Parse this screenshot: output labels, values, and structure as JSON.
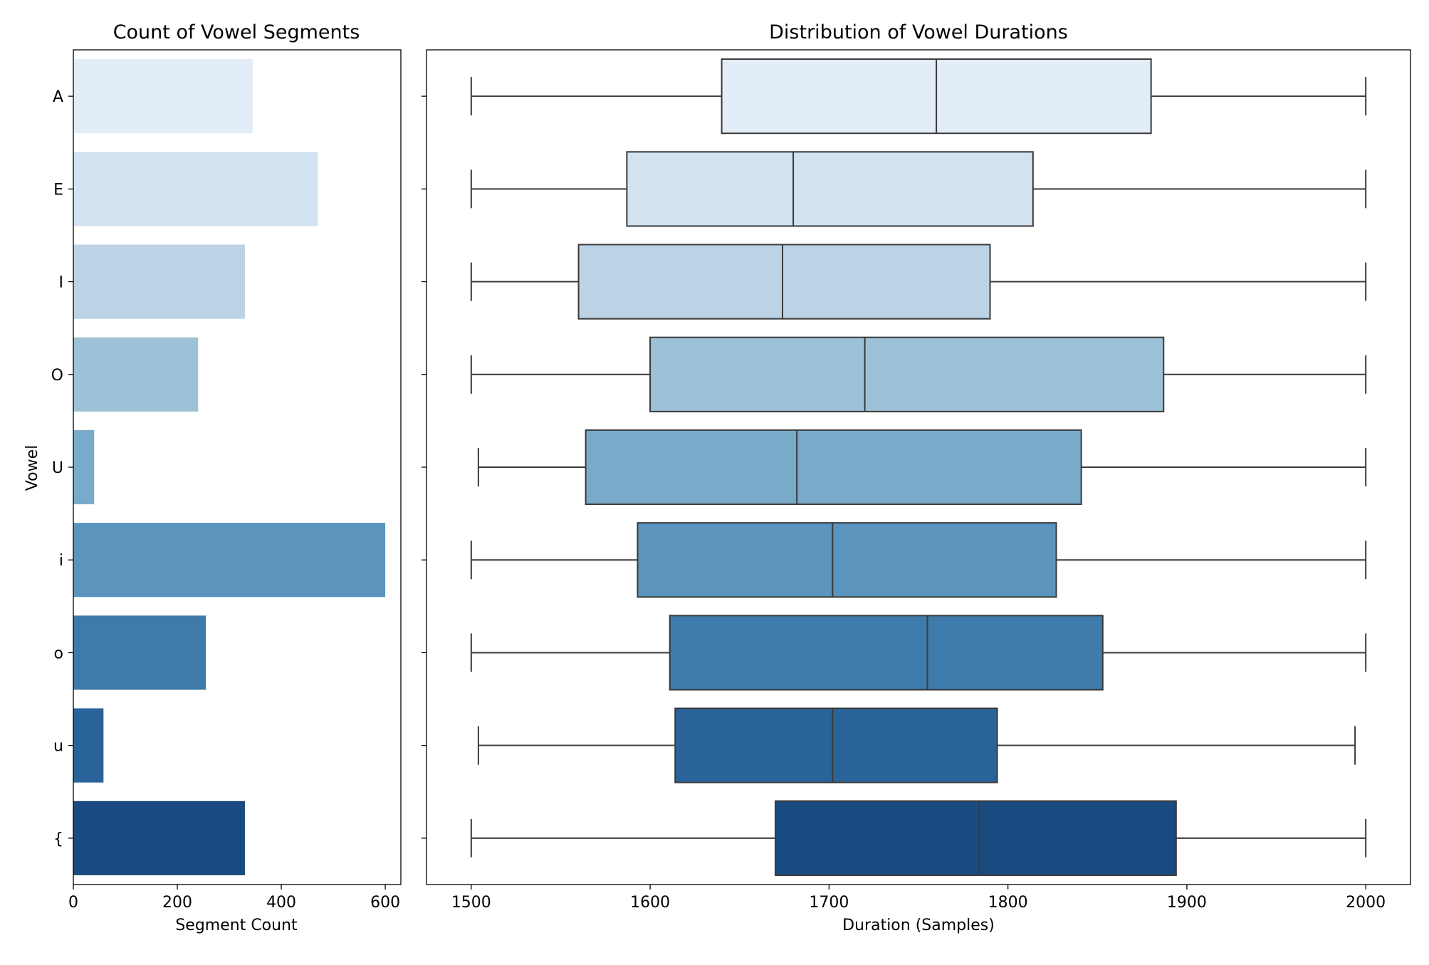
{
  "chart_data": [
    {
      "type": "bar",
      "orientation": "horizontal",
      "title": "Count of Vowel Segments",
      "xlabel": "Segment Count",
      "ylabel": "Vowel",
      "categories": [
        "A",
        "E",
        "I",
        "O",
        "U",
        "i",
        "o",
        "u",
        "{"
      ],
      "values": [
        345,
        470,
        330,
        240,
        40,
        600,
        255,
        58,
        330
      ],
      "xlim": [
        0,
        630
      ],
      "xticks": [
        "0",
        "200",
        "400",
        "600"
      ],
      "colors": [
        "#e3edf7",
        "#d2e2f1",
        "#bcd2e5",
        "#9dc2d7",
        "#79aaca",
        "#5b95bd",
        "#3e7aaa",
        "#296399",
        "#1a4b80"
      ],
      "grid": false,
      "legend": "none"
    },
    {
      "type": "box",
      "orientation": "horizontal",
      "title": "Distribution of Vowel Durations",
      "xlabel": "Duration (Samples)",
      "ylabel": "",
      "categories": [
        "A",
        "E",
        "I",
        "O",
        "U",
        "i",
        "o",
        "u",
        "{"
      ],
      "series": [
        {
          "category": "A",
          "min": 1500,
          "q1": 1640,
          "median": 1760,
          "q3": 1880,
          "max": 2000
        },
        {
          "category": "E",
          "min": 1500,
          "q1": 1587,
          "median": 1680,
          "q3": 1814,
          "max": 2000
        },
        {
          "category": "I",
          "min": 1500,
          "q1": 1560,
          "median": 1674,
          "q3": 1790,
          "max": 2000
        },
        {
          "category": "O",
          "min": 1500,
          "q1": 1600,
          "median": 1720,
          "q3": 1887,
          "max": 2000
        },
        {
          "category": "U",
          "min": 1504,
          "q1": 1564,
          "median": 1682,
          "q3": 1841,
          "max": 2000
        },
        {
          "category": "i",
          "min": 1500,
          "q1": 1593,
          "median": 1702,
          "q3": 1827,
          "max": 2000
        },
        {
          "category": "o",
          "min": 1500,
          "q1": 1611,
          "median": 1755,
          "q3": 1853,
          "max": 2000
        },
        {
          "category": "u",
          "min": 1504,
          "q1": 1614,
          "median": 1702,
          "q3": 1794,
          "max": 1994
        },
        {
          "category": "{",
          "min": 1500,
          "q1": 1670,
          "median": 1784,
          "q3": 1894,
          "max": 2000
        }
      ],
      "xlim": [
        1475,
        2025
      ],
      "xticks": [
        "1500",
        "1600",
        "1700",
        "1800",
        "1900",
        "2000"
      ],
      "colors": [
        "#e3edf7",
        "#d2e2f1",
        "#bcd2e5",
        "#9dc2d7",
        "#79aaca",
        "#5b95bd",
        "#3e7aaa",
        "#296399",
        "#1a4b80"
      ],
      "line_color": "#3a3a3a",
      "grid": false,
      "legend": "none"
    }
  ]
}
